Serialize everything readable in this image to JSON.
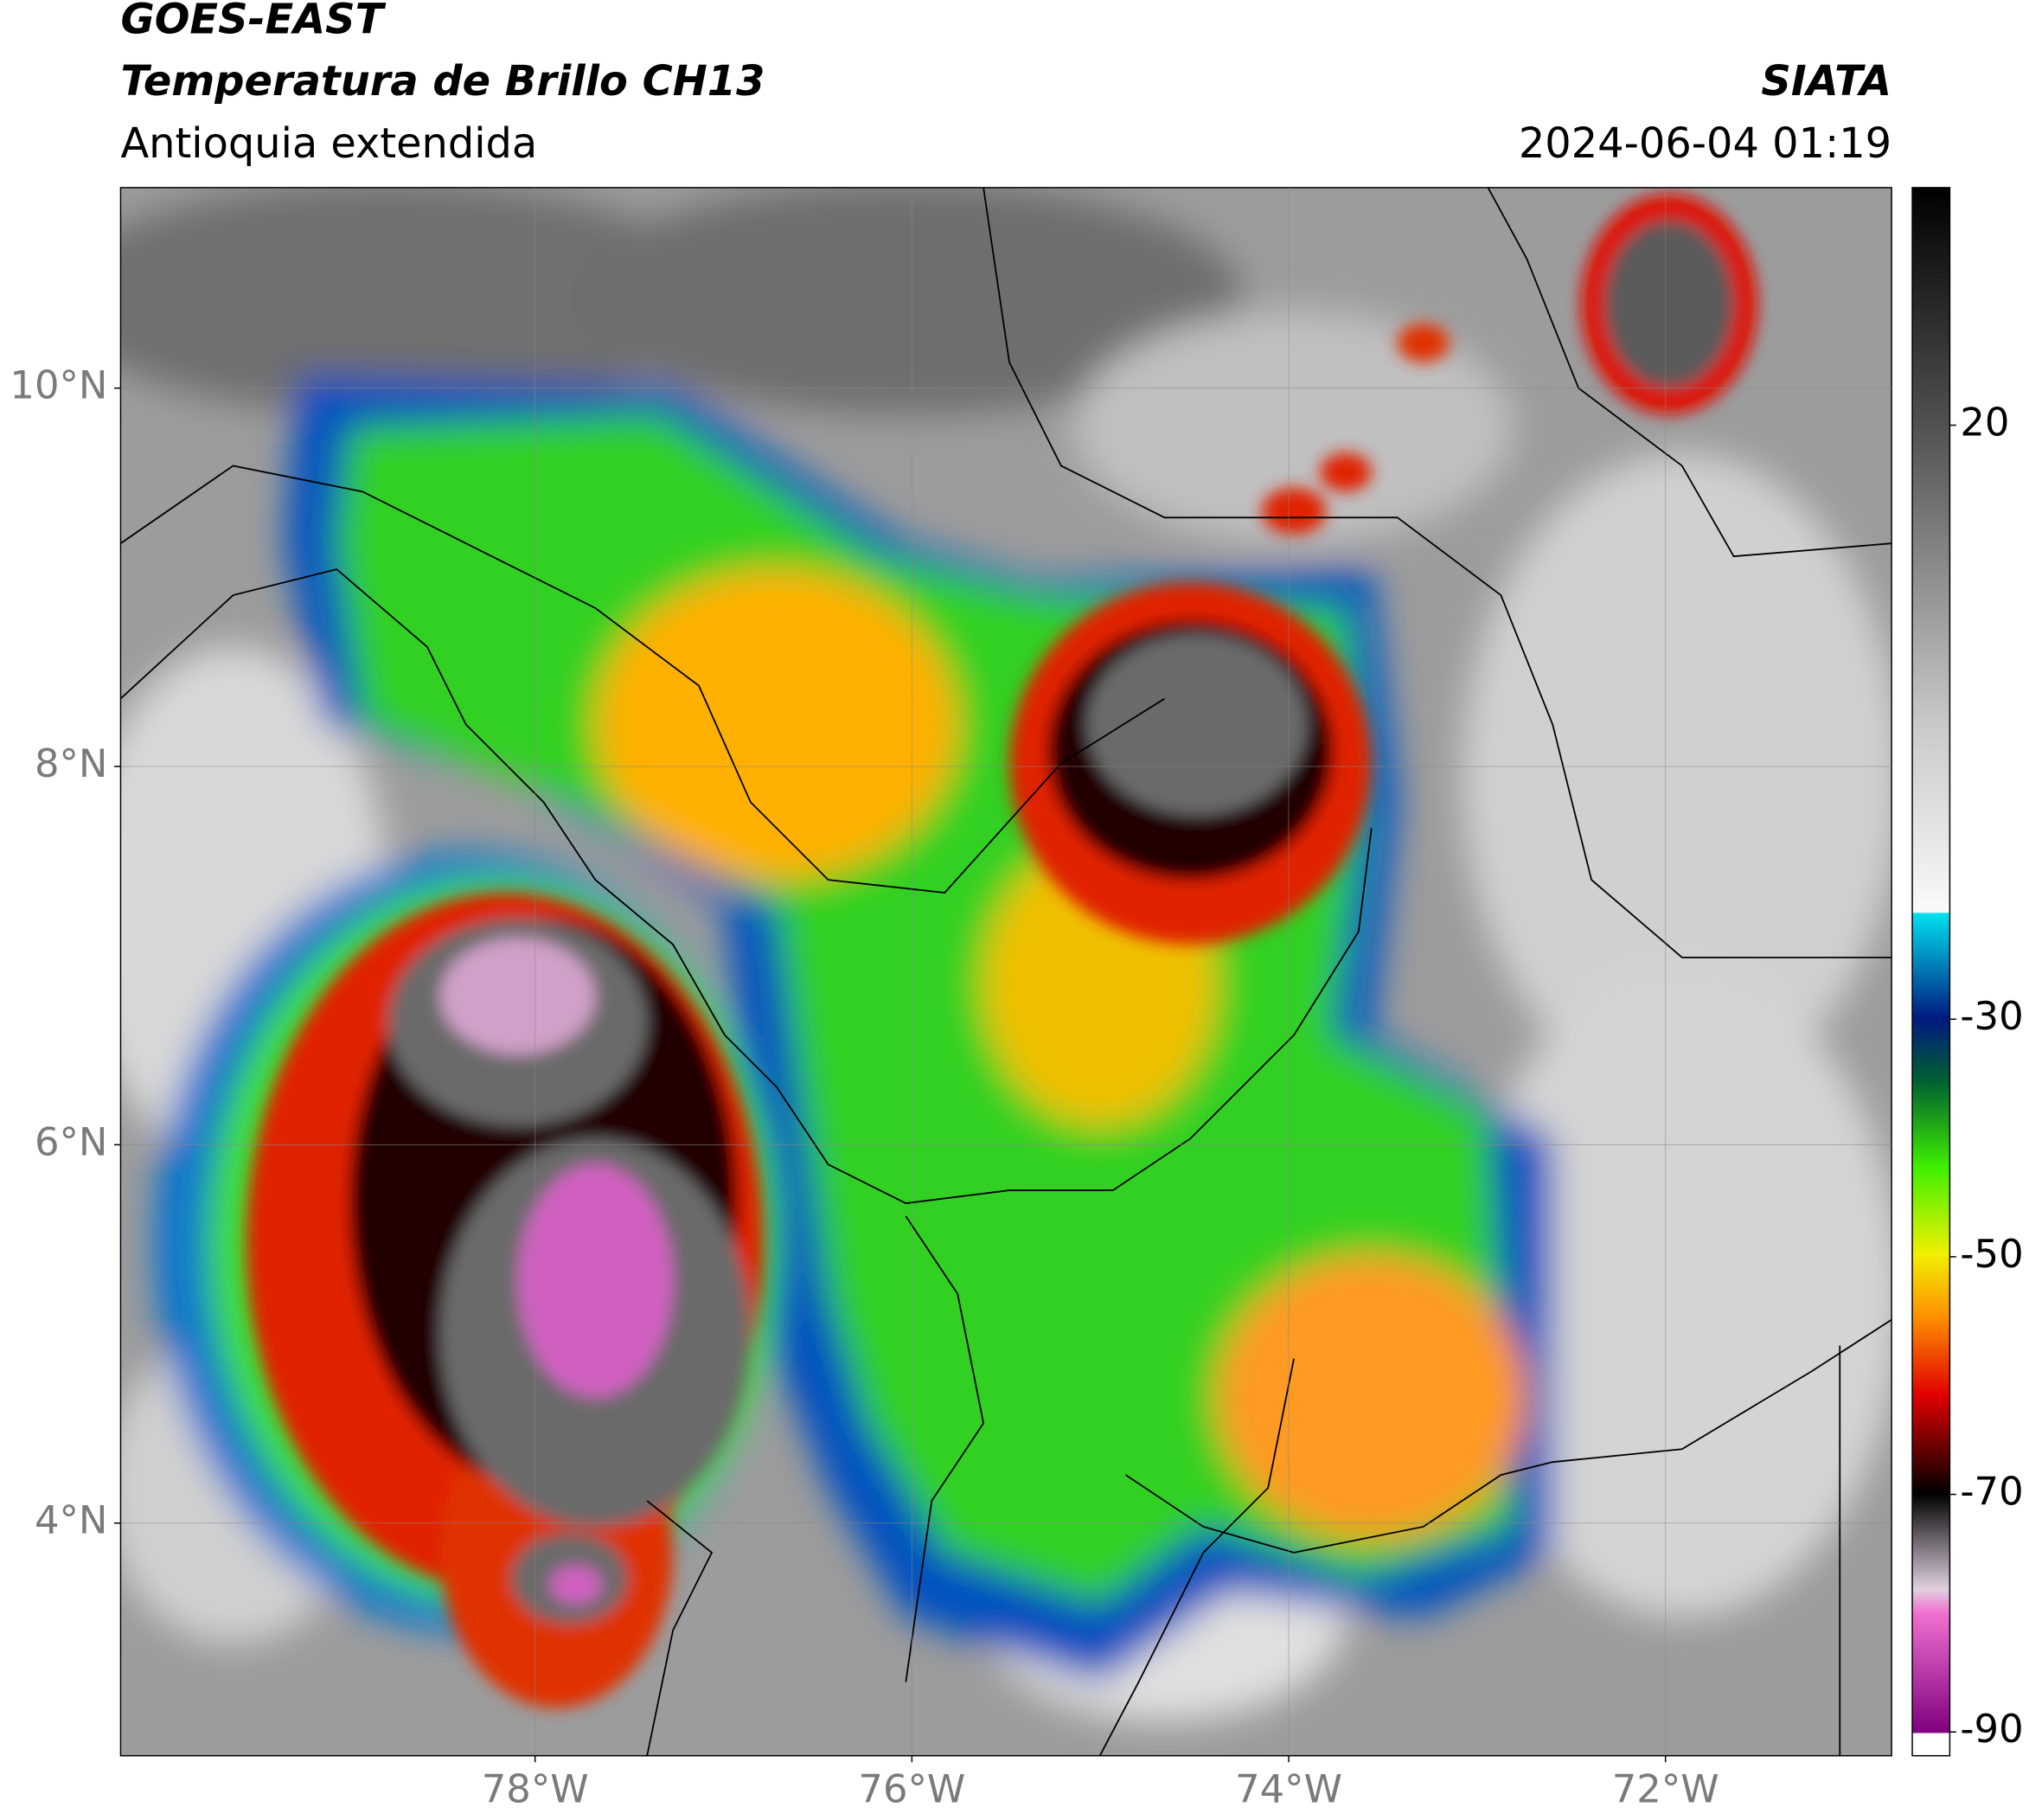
{
  "header": {
    "title": "GOES-EAST",
    "subtitle": "Temperatura de Brillo CH13",
    "region": "Antioquia extendida",
    "source": "SIATA",
    "datetime": "2024-06-04 01:19"
  },
  "map": {
    "lon_range": [
      -80.2,
      -70.8
    ],
    "lat_range": [
      2.77,
      11.06
    ],
    "grid": true,
    "lon_ticks": [
      {
        "value": -78,
        "label": "78°W"
      },
      {
        "value": -76,
        "label": "76°W"
      },
      {
        "value": -74,
        "label": "74°W"
      },
      {
        "value": -72,
        "label": "72°W"
      }
    ],
    "lat_ticks": [
      {
        "value": 10,
        "label": "10°N"
      },
      {
        "value": 8,
        "label": "8°N"
      },
      {
        "value": 6,
        "label": "6°N"
      },
      {
        "value": 4,
        "label": "4°N"
      }
    ]
  },
  "colorbar": {
    "range": [
      -92,
      40
    ],
    "ticks": [
      20,
      -30,
      -50,
      -70,
      -90
    ]
  }
}
